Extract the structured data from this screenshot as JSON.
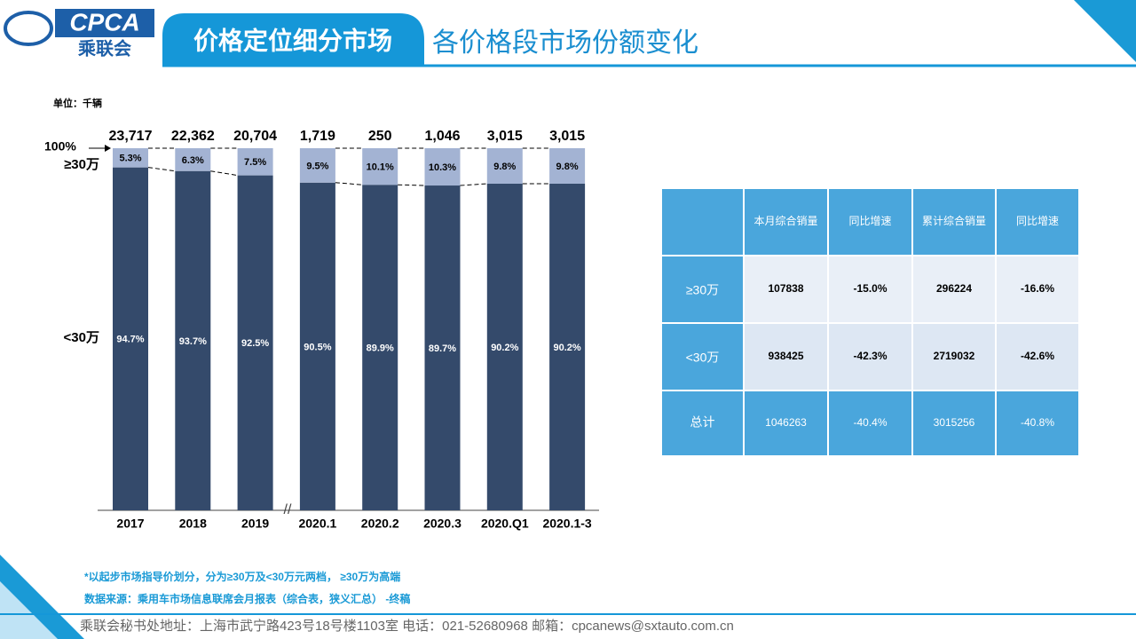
{
  "header": {
    "logo_name": "CPCA",
    "logo_chinese": "乘联会",
    "title": "价格定位细分市场",
    "subtitle": "各价格段市场份额变化"
  },
  "chart_data": {
    "type": "stacked_bar_percent",
    "unit": "单位：千辆",
    "ylim": [
      0,
      100
    ],
    "annotations": {
      "top": "100%"
    },
    "categories": [
      "2017",
      "2018",
      "2019",
      "2020.1",
      "2020.2",
      "2020.3",
      "2020.Q1",
      "2020.1-3"
    ],
    "totals": {
      "values": [
        23717,
        22362,
        20704,
        1719,
        250,
        1046,
        3015,
        3015
      ],
      "value_labels": [
        "23,717",
        "22,362",
        "20,704",
        "1,719",
        "250",
        "1,046",
        "3,015",
        "3,015"
      ]
    },
    "series": [
      {
        "name": "<30万",
        "color": "#344a6b",
        "values": [
          94.7,
          93.7,
          92.5,
          90.5,
          89.9,
          89.7,
          90.2,
          90.2
        ],
        "value_labels": [
          "94.7%",
          "93.7%",
          "92.5%",
          "90.5%",
          "89.9%",
          "89.7%",
          "90.2%",
          "90.2%"
        ]
      },
      {
        "name": "≥30万",
        "color": "#a3b3d3",
        "values": [
          5.3,
          6.3,
          7.5,
          9.5,
          10.1,
          10.3,
          9.8,
          9.8
        ],
        "value_labels": [
          "5.3%",
          "6.3%",
          "7.5%",
          "9.5%",
          "10.1%",
          "10.3%",
          "9.8%",
          "9.8%"
        ]
      }
    ]
  },
  "table": {
    "header": [
      "本月综合销量",
      "同比增速",
      "累计综合销量",
      "同比增速"
    ],
    "rows": [
      [
        "≥30万",
        "107838",
        "-15.0%",
        "296224",
        "-16.6%"
      ],
      [
        "<30万",
        "938425",
        "-42.3%",
        "2719032",
        "-42.6%"
      ],
      [
        "总计",
        "1046263",
        "-40.4%",
        "3015256",
        "-40.8%"
      ]
    ]
  },
  "notes": [
    "*以起步市场指导价划分，分为≥30万及<30万元两档， ≥30万为高端",
    "数据来源：乘用车市场信息联席会月报表（综合表，狭义汇总） -终稿"
  ],
  "footer": "乘联会秘书处地址：上海市武宁路423号18号楼1103室  电话：021-52680968   邮箱：cpcanews@sxtauto.com.cn"
}
